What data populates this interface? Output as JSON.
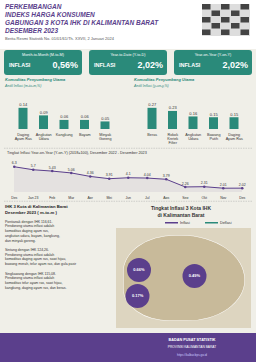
{
  "title": "PERKEMBANGAN\nINDEKS HARGA KONSUMEN\nGABUNGAN 3 KOTA IHK DI KALIMANTAN BARAT\nDESEMBER 2023",
  "subtitle": "Berita Resmi Statistik No. 01/01/61/Th. XXVII, 2 Januari 2024",
  "annotations": [
    {
      "text": "Month-to-Month (M-to-M)"
    },
    {
      "text": "INFLASI"
    },
    {
      "text": "0,56%"
    },
    {
      "text": "Year-to-Date (Y-to-D)"
    },
    {
      "text": "INFLASI"
    },
    {
      "text": "2,02%"
    },
    {
      "text": "Year-on-Year (Y-on-Y)"
    },
    {
      "text": "INFLASI"
    },
    {
      "text": "2,02%"
    },
    {
      "text": "IHK 3 Kota di Kalimantan Barat\nDesember 2023 ( m-to-m )"
    },
    {
      "text": "Pontianak dengan IHK 116,61.\nPendorong utama inflasi adalah\nkomoditas daging ayam ras,\nangkutan udara, bayam, kangkung,\ndan minyak goreng.\n\nSintang dengan IHK 124,26.\nPendorong utama inflasi adalah\nkomoditas daging ayam ras, sawi hijau,\nbawang merah, telur ayam ras, dan gula pasir\n\nSingkawang dengan IHK 115,08.\nPendorong utama inflasi adalah\nkomoditas telur ayam ras, sawi hijau,\nkangkung, daging ayam ras, dan beras."
    },
    {
      "text": "Tingkat Inflasi 3 Kota IHK\ndi Kalimantan Barat"
    },
    {
      "text": "Inflasi",
      "color": "#5b3f8c"
    },
    {
      "text": "Deflasi",
      "color": "#2a8a7a"
    },
    {
      "text": "0.17%",
      "color": "#5b3f8c"
    },
    {
      "text": "0.66%",
      "color": "#5b3f8c"
    },
    {
      "text": "0.49%",
      "color": "#5b3f8c"
    },
    {
      "text": "BADAN PUSAT STATISTIK"
    },
    {
      "text": "PROVINSI KALIMANTAN BARAT"
    },
    {
      "text": "https://kalbar.bps.go.id"
    }
  ],
  "chart_data": [
    {
      "type": "bar",
      "title": "Komoditas Penyumbang Utama",
      "subtitle": "Andil Inflasi (m-to-m,%)",
      "categories": [
        "Daging\nAyam Ras",
        "Angkutan\nUdara",
        "Kangkung",
        "Bayam",
        "Minyak\nGoreng"
      ],
      "values": [
        0.14,
        0.09,
        0.06,
        0.06,
        0.05
      ],
      "color": "#2a8a7a",
      "ylim": [
        0,
        0.238
      ],
      "data_labels": true,
      "tick_labels": "x",
      "grid": false
    },
    {
      "type": "bar",
      "title": "Komoditas Penyumbang Utama",
      "subtitle": "Andil Inflasi (y-on-y,%)",
      "categories": [
        "Beras",
        "Rokok\nKretek\nFilter",
        "Angkutan\nUdara",
        "Bawang\nPutih",
        "Daging\nAyam Ras"
      ],
      "values": [
        0.27,
        0.23,
        0.16,
        0.15,
        0.15
      ],
      "color": "#2a8a7a",
      "ylim": [
        0,
        0.459
      ],
      "data_labels": true,
      "tick_labels": "x",
      "grid": false
    },
    {
      "type": "line",
      "title": "Tingkat Inflasi Year-on-Year (Y-on-Y) (2018=100), Desember 2022 - Desember 2023",
      "categories": [
        "Des",
        "Jan 23",
        "Feb",
        "Mar",
        "Apr",
        "Mei",
        "Jun",
        "Jul",
        "Ags",
        "Sep",
        "Okt",
        "Nov",
        "Des"
      ],
      "values": [
        6.3,
        5.7,
        5.43,
        5.06,
        4.36,
        3.91,
        4.1,
        4.04,
        3.79,
        2.26,
        2.31,
        2.01,
        2.02
      ],
      "color": "#5b3f8c",
      "marker": "circle",
      "ylim": [
        1.2,
        7.4
      ],
      "data_labels": true,
      "tick_labels": "x",
      "grid": false
    }
  ]
}
